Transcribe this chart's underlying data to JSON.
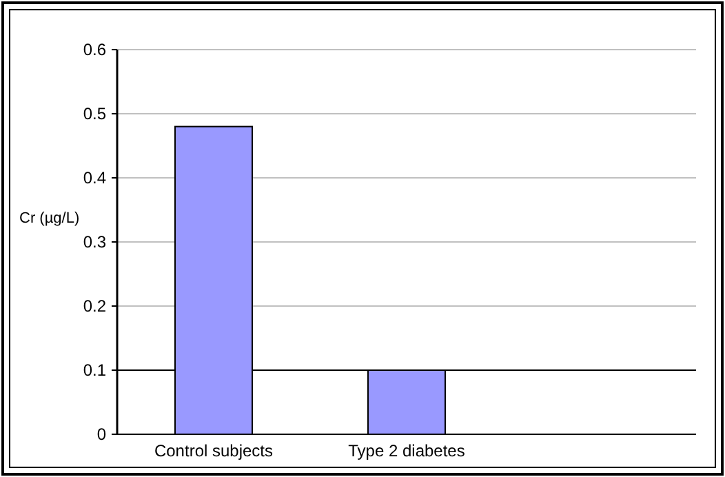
{
  "chart_data": {
    "type": "bar",
    "ylabel": "Cr (µg/L)",
    "categories": [
      "Control subjects",
      "Type 2 diabetes",
      null
    ],
    "values": [
      0.48,
      0.1,
      null
    ],
    "color": "#9999ff",
    "ylim": [
      0,
      0.6
    ],
    "yticks": [
      0,
      0.1,
      0.2,
      0.3,
      0.4,
      0.5,
      0.6
    ],
    "grid": "y",
    "ref_lines": [
      {
        "axis": "y",
        "value": 0.1,
        "color": "#000000"
      }
    ]
  }
}
